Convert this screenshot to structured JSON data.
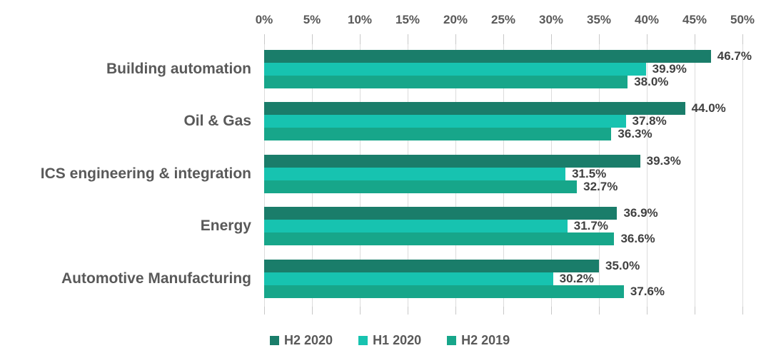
{
  "chart_data": {
    "type": "bar",
    "orientation": "horizontal",
    "title": "",
    "x_axis": {
      "position": "top",
      "min": 0,
      "max": 50,
      "tick_step": 5,
      "ticks": [
        "0%",
        "5%",
        "10%",
        "15%",
        "20%",
        "25%",
        "30%",
        "35%",
        "40%",
        "45%",
        "50%"
      ]
    },
    "grid": true,
    "categories": [
      "Building automation",
      "Oil & Gas",
      "ICS engineering & integration",
      "Energy",
      "Automotive Manufacturing"
    ],
    "series": [
      {
        "name": "H2 2020",
        "color": "#1a7d6a",
        "values": [
          46.7,
          44.0,
          39.3,
          36.9,
          35.0
        ],
        "labels": [
          "46.7%",
          "44.0%",
          "39.3%",
          "36.9%",
          "35.0%"
        ]
      },
      {
        "name": "H1 2020",
        "color": "#17c3b0",
        "values": [
          39.9,
          37.8,
          31.5,
          31.7,
          30.2
        ],
        "labels": [
          "39.9%",
          "37.8%",
          "31.5%",
          "31.7%",
          "30.2%"
        ]
      },
      {
        "name": "H2 2019",
        "color": "#17a68a",
        "values": [
          38.0,
          36.3,
          32.7,
          36.6,
          37.6
        ],
        "labels": [
          "38.0%",
          "36.3%",
          "32.7%",
          "36.6%",
          "37.6%"
        ]
      }
    ],
    "legend": {
      "position": "bottom",
      "entries": [
        "H2 2020",
        "H1 2020",
        "H2 2019"
      ]
    }
  },
  "colors": {
    "background": "#ffffff",
    "gridline": "#dcdcdc",
    "tick": "#c8c8c8",
    "axis_text": "#595959",
    "category_text": "#595959",
    "value_text": "#404040"
  }
}
